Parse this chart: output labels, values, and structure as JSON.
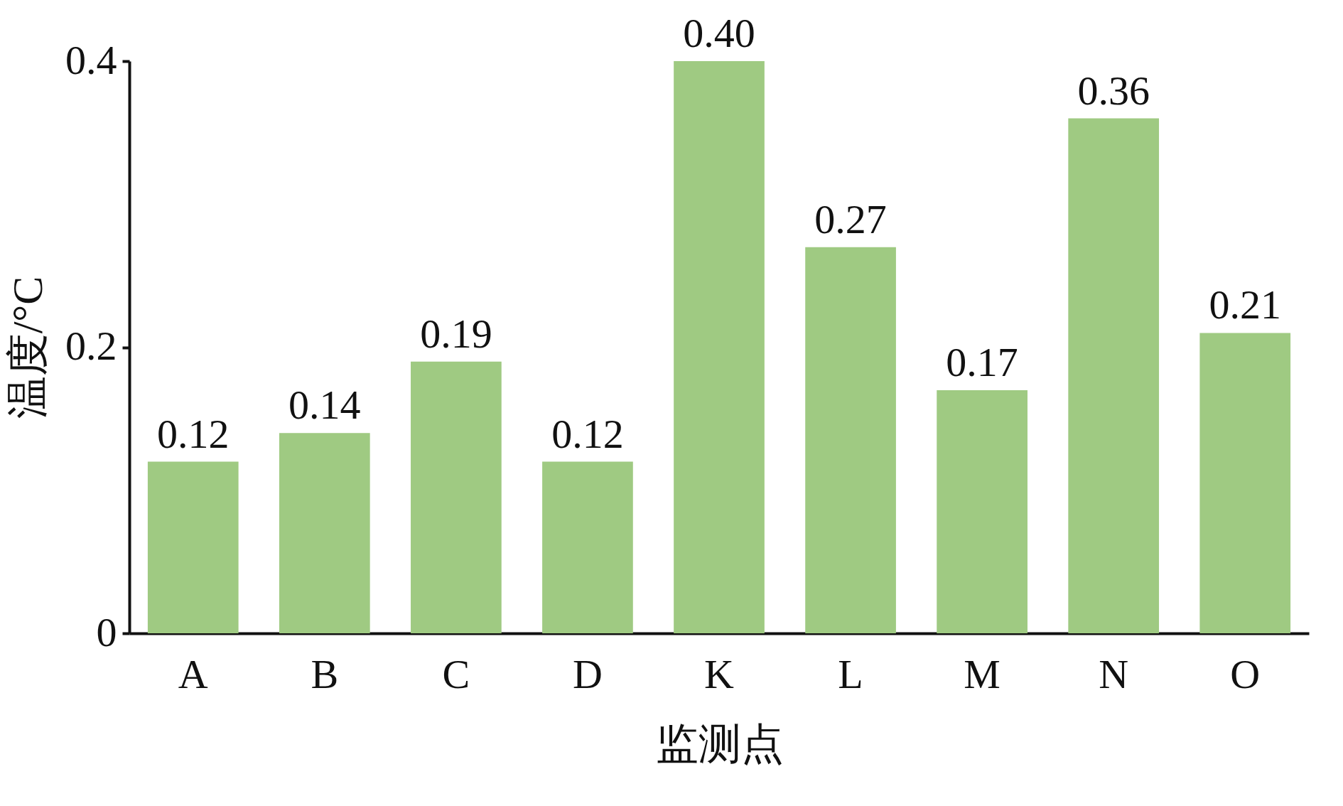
{
  "chart_data": {
    "type": "bar",
    "xlabel": "监测点",
    "ylabel": "温度/°C",
    "categories": [
      "A",
      "B",
      "C",
      "D",
      "K",
      "L",
      "M",
      "N",
      "O"
    ],
    "values": [
      0.12,
      0.14,
      0.19,
      0.12,
      0.4,
      0.27,
      0.17,
      0.36,
      0.21
    ],
    "value_labels": [
      "0.12",
      "0.14",
      "0.19",
      "0.12",
      "0.40",
      "0.27",
      "0.17",
      "0.36",
      "0.21"
    ],
    "color": "#9fca82",
    "ylim": [
      0,
      0.4
    ],
    "yticks": [
      0,
      0.2,
      0.4
    ]
  }
}
